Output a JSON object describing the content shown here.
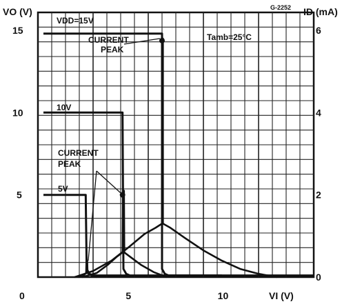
{
  "chart_data": {
    "type": "line",
    "figure_code": "G-2252",
    "title": "",
    "condition_label": "Tamb=25°C",
    "supply_label": "VDD=15V",
    "x_axis": {
      "label": "VI (V)",
      "min": 0,
      "max": 15,
      "ticks": [
        0,
        5,
        10
      ]
    },
    "y_left": {
      "label": "VO (V)",
      "min": 0,
      "max": 15.5,
      "ticks": [
        0,
        5,
        10,
        15
      ]
    },
    "y_right": {
      "label": "ID (mA)",
      "min": 0,
      "max": 6.2,
      "ticks": [
        0,
        2,
        4,
        6
      ]
    },
    "grid": true,
    "series": [
      {
        "name": "VDD=15V",
        "label_text": "",
        "quantity": "VO",
        "points": [
          [
            0.3,
            14.8
          ],
          [
            6.75,
            14.8
          ],
          [
            6.75,
            0.5
          ],
          [
            6.9,
            0.2
          ],
          [
            7.1,
            0.1
          ],
          [
            15,
            0.1
          ]
        ]
      },
      {
        "name": "10V",
        "label_text": "10V",
        "quantity": "VO",
        "points": [
          [
            0.3,
            10
          ],
          [
            4.6,
            10
          ],
          [
            4.65,
            0.5
          ],
          [
            4.8,
            0.2
          ],
          [
            5.0,
            0.1
          ],
          [
            10,
            0.1
          ]
        ]
      },
      {
        "name": "5V",
        "label_text": "5V",
        "quantity": "VO",
        "points": [
          [
            0.3,
            5
          ],
          [
            2.6,
            5
          ],
          [
            2.65,
            0.5
          ],
          [
            2.8,
            0.2
          ],
          [
            3.0,
            0.1
          ],
          [
            5,
            0.1
          ]
        ]
      },
      {
        "name": "ID VDD=15V",
        "label_text": "",
        "quantity": "ID",
        "points": [
          [
            2.0,
            0
          ],
          [
            3.0,
            0.15
          ],
          [
            4.0,
            0.4
          ],
          [
            5.0,
            0.75
          ],
          [
            5.8,
            1.05
          ],
          [
            6.4,
            1.2
          ],
          [
            6.75,
            1.3
          ],
          [
            6.75,
            5.8
          ],
          [
            6.8,
            5.8
          ],
          [
            6.8,
            1.3
          ],
          [
            7.2,
            1.2
          ],
          [
            8.0,
            0.95
          ],
          [
            9.0,
            0.65
          ],
          [
            10.0,
            0.4
          ],
          [
            11.0,
            0.2
          ],
          [
            12.0,
            0.08
          ],
          [
            13.0,
            0
          ]
        ]
      },
      {
        "name": "ID 10V",
        "label_text": "",
        "quantity": "ID",
        "points": [
          [
            2.4,
            0
          ],
          [
            3.2,
            0.1
          ],
          [
            3.8,
            0.3
          ],
          [
            4.3,
            0.5
          ],
          [
            4.6,
            0.6
          ],
          [
            4.62,
            2.1
          ],
          [
            4.68,
            2.1
          ],
          [
            4.7,
            0.6
          ],
          [
            5.0,
            0.5
          ],
          [
            5.6,
            0.3
          ],
          [
            6.3,
            0.12
          ],
          [
            7.0,
            0
          ]
        ]
      },
      {
        "name": "ID 5V",
        "label_text": "",
        "quantity": "ID",
        "points": [
          [
            2.2,
            0
          ],
          [
            2.5,
            0.05
          ],
          [
            2.62,
            0.1
          ],
          [
            2.64,
            0.4
          ],
          [
            2.68,
            0.4
          ],
          [
            2.7,
            0.1
          ],
          [
            2.9,
            0.04
          ],
          [
            3.2,
            0
          ]
        ]
      }
    ],
    "annotations": [
      {
        "text": [
          "CURRENT",
          "PEAK"
        ],
        "x": 6.75,
        "y_id": 5.75
      },
      {
        "text": [
          "CURRENT",
          "PEAK"
        ],
        "x": 4.6,
        "y_id": 2.0
      }
    ]
  }
}
